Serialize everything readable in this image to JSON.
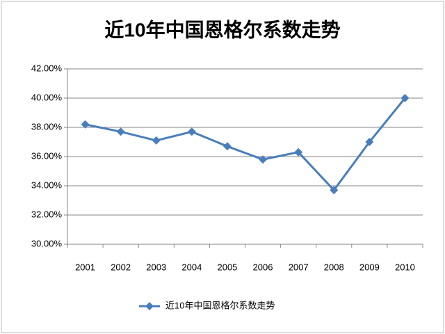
{
  "chart_data": {
    "type": "line",
    "title": "近10年中国恩格尔系数走势",
    "categories": [
      "2001",
      "2002",
      "2003",
      "2004",
      "2005",
      "2006",
      "2007",
      "2008",
      "2009",
      "2010"
    ],
    "series": [
      {
        "name": "近10年中国恩格尔系数走势",
        "color": "#4a7ebb",
        "values": [
          38.2,
          37.7,
          37.1,
          37.7,
          36.7,
          35.8,
          36.3,
          33.7,
          37.0,
          40.0
        ]
      }
    ],
    "ylim": [
      30,
      42
    ],
    "yticks": [
      {
        "value": 30,
        "label": "30.00%"
      },
      {
        "value": 32,
        "label": "32.00%"
      },
      {
        "value": 34,
        "label": "34.00%"
      },
      {
        "value": 36,
        "label": "36.00%"
      },
      {
        "value": 38,
        "label": "38.00%"
      },
      {
        "value": 40,
        "label": "40.00%"
      },
      {
        "value": 42,
        "label": "42.00%"
      }
    ],
    "grid": true,
    "legend": "bottom"
  }
}
